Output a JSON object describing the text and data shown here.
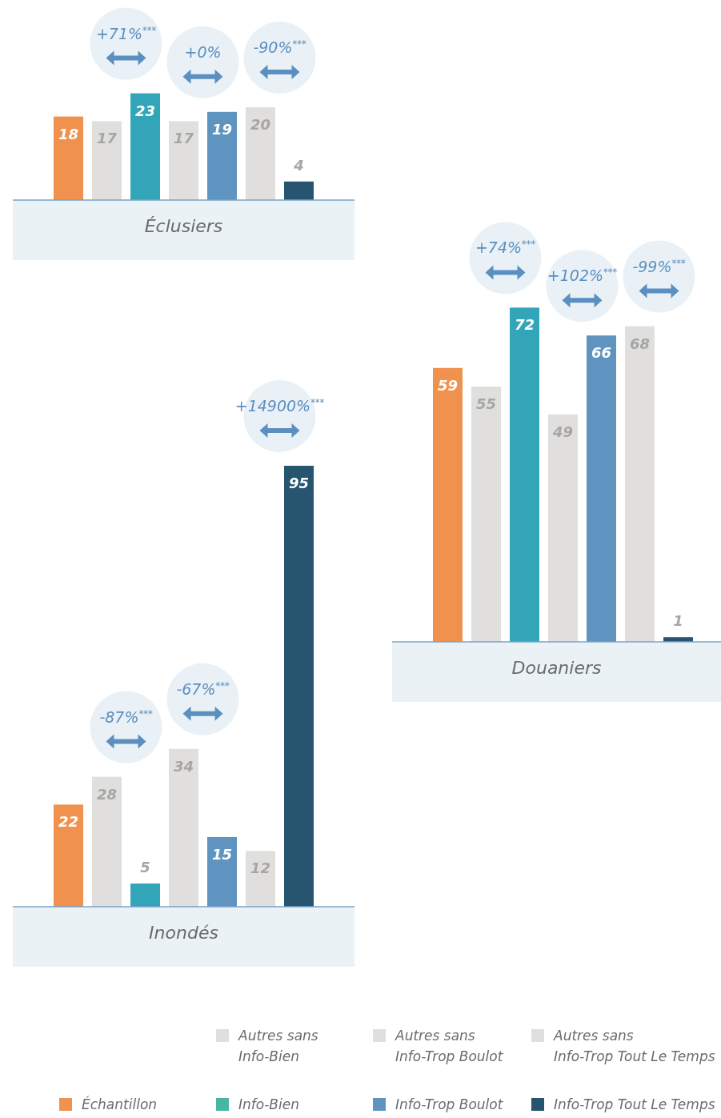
{
  "chart_data": [
    {
      "type": "bar",
      "xlabel": "Éclusiers",
      "categories": [
        null,
        null,
        null,
        null,
        null,
        null,
        null
      ],
      "data_labels": true,
      "values": [
        18,
        17,
        23,
        17,
        19,
        20,
        4
      ],
      "colors": [
        "#f0914e",
        "#e0dfdd",
        "#33a5b9",
        "#e0dfdd",
        "#6094c0",
        "#e0dfdd",
        "#27556f"
      ],
      "annotations": [
        "+71%$^{***}$",
        "+0%",
        "-90%$^{***}$"
      ]
    },
    {
      "type": "bar",
      "xlabel": "Douaniers",
      "categories": [
        null,
        null,
        null,
        null,
        null,
        null,
        null
      ],
      "data_labels": true,
      "values": [
        59,
        55,
        72,
        49,
        66,
        68,
        1
      ],
      "colors": [
        "#f0914e",
        "#e0dfdd",
        "#33a5b9",
        "#e0dfdd",
        "#6094c0",
        "#e0dfdd",
        "#27556f"
      ],
      "annotations": [
        "+74%$^{***}$",
        "+102%$^{***}$",
        "-99%$^{***}$"
      ]
    },
    {
      "type": "bar",
      "xlabel": "Inondés",
      "categories": [
        null,
        null,
        null,
        null,
        null,
        null,
        null
      ],
      "data_labels": true,
      "values": [
        22,
        28,
        5,
        34,
        15,
        12,
        95
      ],
      "colors": [
        "#f0914e",
        "#e0dfdd",
        "#33a5b9",
        "#e0dfdd",
        "#6094c0",
        "#e0dfdd",
        "#27556f"
      ],
      "annotations": [
        "-87%$^{***}$",
        "-67%$^{***}$",
        "+14900%$^{***}$"
      ]
    },
    {
      "type": "other",
      "categories": [
        "Échantillon",
        "Autres sans Info-Bien",
        "Info-Bien",
        "Autres sans Info-Trop Boulot",
        "Info-Trop Boulot",
        "Autres sans Info-Trop Tout Le Temps",
        "Info-Trop Tout Le Temps"
      ],
      "colors": [
        "#f0914e",
        "#e0dfdd",
        "#4ab5a3",
        "#e0dfdd",
        "#6094c0",
        "#e0dfdd",
        "#27556f"
      ]
    }
  ]
}
